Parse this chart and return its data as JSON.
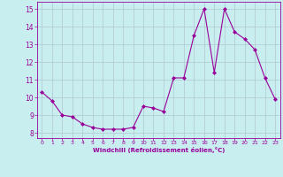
{
  "x": [
    0,
    1,
    2,
    3,
    4,
    5,
    6,
    7,
    8,
    9,
    10,
    11,
    12,
    13,
    14,
    15,
    16,
    17,
    18,
    19,
    20,
    21,
    22,
    23
  ],
  "y": [
    10.3,
    9.8,
    9.0,
    8.9,
    8.5,
    8.3,
    8.2,
    8.2,
    8.2,
    8.3,
    9.5,
    9.4,
    9.2,
    11.1,
    11.1,
    13.5,
    15.0,
    11.4,
    15.0,
    13.7,
    13.3,
    12.7,
    11.1,
    9.9
  ],
  "line_color": "#990099",
  "marker_color": "#990099",
  "bg_color": "#c8eef0",
  "grid_color": "#b0c8d0",
  "xlabel": "Windchill (Refroidissement éolien,°C)",
  "xlabel_color": "#990099",
  "tick_color": "#990099",
  "ylim": [
    7.7,
    15.4
  ],
  "xlim": [
    -0.5,
    23.5
  ],
  "yticks": [
    8,
    9,
    10,
    11,
    12,
    13,
    14,
    15
  ],
  "xticks": [
    0,
    1,
    2,
    3,
    4,
    5,
    6,
    7,
    8,
    9,
    10,
    11,
    12,
    13,
    14,
    15,
    16,
    17,
    18,
    19,
    20,
    21,
    22,
    23
  ]
}
